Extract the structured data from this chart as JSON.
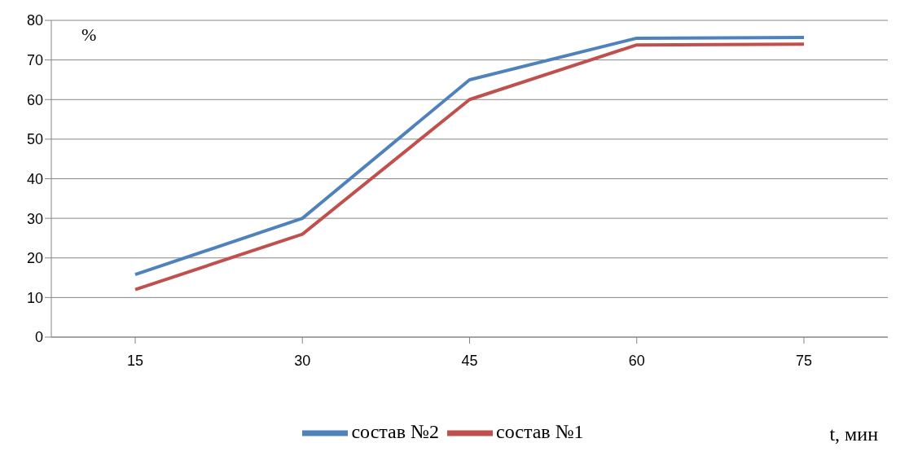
{
  "chart_data": {
    "type": "line",
    "xlabel": "t, мин",
    "ylabel": "%",
    "categories": [
      "15",
      "30",
      "45",
      "60",
      "75"
    ],
    "series": [
      {
        "name": "состав №2",
        "color": "#4f81bd",
        "values": [
          15.8,
          30,
          65,
          75.5,
          75.7
        ]
      },
      {
        "name": "состав №1",
        "color": "#c0504d",
        "values": [
          12,
          26,
          60,
          73.8,
          74
        ]
      }
    ],
    "ylim": [
      0,
      80
    ],
    "yticks": [
      0,
      10,
      20,
      30,
      40,
      50,
      60,
      70,
      80
    ],
    "grid": "y",
    "legend": "bottom",
    "marker": "none",
    "line_style": "solid"
  }
}
